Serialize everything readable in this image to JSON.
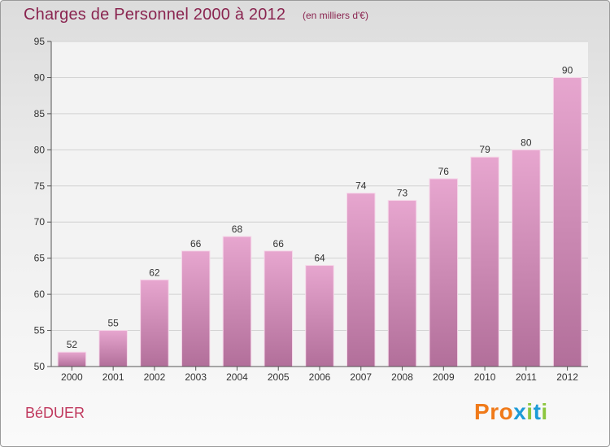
{
  "header": {
    "title": "Charges de Personnel 2000 à 2012",
    "subtitle": "(en milliers d'€)"
  },
  "footer": {
    "commune": "BéDUER",
    "logo_letters": [
      "P",
      "r",
      "o",
      "x",
      "i",
      "t",
      "i"
    ]
  },
  "colors": {
    "title": "#8a2550",
    "commune": "#c0395e",
    "bar_top": "#e7a6cf",
    "bar_bottom": "#b26f9a",
    "logo": [
      "#f07a1a",
      "#f07a1a",
      "#f07a1a",
      "#1e9bd7",
      "#8cc63f",
      "#1e9bd7",
      "#8cc63f"
    ]
  },
  "chart_data": {
    "type": "bar",
    "categories": [
      "2000",
      "2001",
      "2002",
      "2003",
      "2004",
      "2005",
      "2006",
      "2007",
      "2008",
      "2009",
      "2010",
      "2011",
      "2012"
    ],
    "values": [
      52,
      55,
      62,
      66,
      68,
      66,
      64,
      74,
      73,
      76,
      79,
      80,
      90
    ],
    "title": "Charges de Personnel 2000 à 2012",
    "ylim": [
      50,
      95
    ],
    "yticks": [
      50,
      55,
      60,
      65,
      70,
      75,
      80,
      85,
      90,
      95
    ],
    "grid": true,
    "legend": "none"
  }
}
